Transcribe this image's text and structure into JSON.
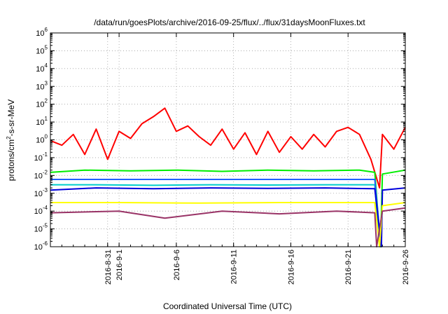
{
  "chart_data": {
    "type": "line",
    "title": "/data/run/goesPlots/archive/2016-09-25/flux/../flux/31daysMoonFluxes.txt",
    "xlabel": "Coordinated Universal Time (UTC)",
    "ylabel": {
      "pre": "protons/cm",
      "sup": "2",
      "post": "-s-sr-MeV"
    },
    "x_range": [
      "2016-08-26",
      "2016-09-26"
    ],
    "y_scale": "log",
    "ylim": [
      1e-06,
      1000000.0
    ],
    "grid": true,
    "y_ticks": [
      {
        "value": 1e-06,
        "base": "10",
        "exp": "-6"
      },
      {
        "value": 1e-05,
        "base": "10",
        "exp": "-5"
      },
      {
        "value": 0.0001,
        "base": "10",
        "exp": "-4"
      },
      {
        "value": 0.001,
        "base": "10",
        "exp": "-3"
      },
      {
        "value": 0.01,
        "base": "10",
        "exp": "-2"
      },
      {
        "value": 0.1,
        "base": "10",
        "exp": "-1"
      },
      {
        "value": 1,
        "base": "10",
        "exp": "0"
      },
      {
        "value": 10.0,
        "base": "10",
        "exp": "1"
      },
      {
        "value": 100.0,
        "base": "10",
        "exp": "2"
      },
      {
        "value": 1000.0,
        "base": "10",
        "exp": "3"
      },
      {
        "value": 10000.0,
        "base": "10",
        "exp": "4"
      },
      {
        "value": 100000.0,
        "base": "10",
        "exp": "5"
      },
      {
        "value": 1000000.0,
        "base": "10",
        "exp": "6"
      }
    ],
    "x_ticks": [
      {
        "value": "2016-08-31",
        "lines": [
          "2016-8-31"
        ]
      },
      {
        "value": "2016-09-01",
        "lines": [
          "2016-9-1"
        ]
      },
      {
        "value": "2016-09-06",
        "lines": [
          "2016-9-6"
        ]
      },
      {
        "value": "2016-09-11",
        "lines": [
          "2016-9-11"
        ]
      },
      {
        "value": "2016-09-16",
        "lines": [
          "2016-9-16"
        ]
      },
      {
        "value": "2016-09-21",
        "lines": [
          "2016-9-21"
        ]
      },
      {
        "value": "2016-09-26",
        "lines": [
          "2016-9-26"
        ]
      }
    ],
    "series": [
      {
        "color": "#ff0000",
        "points": [
          [
            "2016-08-26",
            0.9
          ],
          [
            "2016-08-27",
            0.5
          ],
          [
            "2016-08-28",
            2
          ],
          [
            "2016-08-29",
            0.15
          ],
          [
            "2016-08-30",
            4
          ],
          [
            "2016-08-31",
            0.08
          ],
          [
            "2016-09-01",
            3
          ],
          [
            "2016-09-02",
            1.2
          ],
          [
            "2016-09-03",
            8
          ],
          [
            "2016-09-04",
            20
          ],
          [
            "2016-09-05",
            60
          ],
          [
            "2016-09-06",
            3
          ],
          [
            "2016-09-07",
            6
          ],
          [
            "2016-09-08",
            1.5
          ],
          [
            "2016-09-09",
            0.5
          ],
          [
            "2016-09-10",
            4
          ],
          [
            "2016-09-11",
            0.3
          ],
          [
            "2016-09-12",
            2.5
          ],
          [
            "2016-09-13",
            0.15
          ],
          [
            "2016-09-14",
            3
          ],
          [
            "2016-09-15",
            0.2
          ],
          [
            "2016-09-16",
            1.5
          ],
          [
            "2016-09-17",
            0.3
          ],
          [
            "2016-09-18",
            2
          ],
          [
            "2016-09-19",
            0.4
          ],
          [
            "2016-09-20",
            3
          ],
          [
            "2016-09-21",
            5
          ],
          [
            "2016-09-22",
            2
          ],
          [
            "2016-09-23",
            0.08
          ],
          [
            "2016-09-23T18:00",
            0.002
          ],
          [
            "2016-09-24",
            2
          ],
          [
            "2016-09-25",
            0.3
          ],
          [
            "2016-09-26",
            5
          ]
        ]
      },
      {
        "color": "#00ee00",
        "points": [
          [
            "2016-08-26",
            0.015
          ],
          [
            "2016-08-29",
            0.02
          ],
          [
            "2016-09-02",
            0.018
          ],
          [
            "2016-09-06",
            0.02
          ],
          [
            "2016-09-10",
            0.017
          ],
          [
            "2016-09-14",
            0.02
          ],
          [
            "2016-09-18",
            0.018
          ],
          [
            "2016-09-22",
            0.02
          ],
          [
            "2016-09-23T08:00",
            0.015
          ],
          [
            "2016-09-23T20:00",
            1e-06
          ],
          [
            "2016-09-24",
            0.012
          ],
          [
            "2016-09-26",
            0.02
          ]
        ]
      },
      {
        "color": "#00cccc",
        "points": [
          [
            "2016-08-26",
            0.003
          ],
          [
            "2016-08-30",
            0.003
          ],
          [
            "2016-09-04",
            0.0028
          ],
          [
            "2016-09-09",
            0.003
          ],
          [
            "2016-09-14",
            0.0029
          ],
          [
            "2016-09-19",
            0.003
          ],
          [
            "2016-09-23T08:00",
            0.003
          ],
          [
            "2016-09-23T18:00",
            1e-06
          ]
        ]
      },
      {
        "color": "#2060ff",
        "points": [
          [
            "2016-08-26",
            0.006
          ],
          [
            "2016-09-05",
            0.006
          ],
          [
            "2016-09-15",
            0.006
          ],
          [
            "2016-09-23T08:00",
            0.006
          ],
          [
            "2016-09-23T21:00",
            1e-06
          ]
        ]
      },
      {
        "color": "#0000dd",
        "points": [
          [
            "2016-08-26",
            0.0015
          ],
          [
            "2016-08-30",
            0.002
          ],
          [
            "2016-09-04",
            0.0018
          ],
          [
            "2016-09-09",
            0.002
          ],
          [
            "2016-09-14",
            0.0019
          ],
          [
            "2016-09-19",
            0.002
          ],
          [
            "2016-09-23T08:00",
            0.0018
          ],
          [
            "2016-09-23T22:00",
            1e-06
          ],
          [
            "2016-09-24",
            0.0015
          ],
          [
            "2016-09-26",
            0.002
          ]
        ]
      },
      {
        "color": "#ffff00",
        "points": [
          [
            "2016-08-26",
            0.0003
          ],
          [
            "2016-09-01",
            0.0003
          ],
          [
            "2016-09-08",
            0.00028
          ],
          [
            "2016-09-15",
            0.0003
          ],
          [
            "2016-09-23T08:00",
            0.0003
          ],
          [
            "2016-09-23T18:00",
            1e-06
          ],
          [
            "2016-09-24",
            0.0002
          ],
          [
            "2016-09-26",
            0.0003
          ]
        ]
      },
      {
        "color": "#993366",
        "points": [
          [
            "2016-08-26",
            8e-05
          ],
          [
            "2016-09-01",
            0.0001
          ],
          [
            "2016-09-05",
            4e-05
          ],
          [
            "2016-09-10",
            0.0001
          ],
          [
            "2016-09-15",
            7e-05
          ],
          [
            "2016-09-20",
            0.0001
          ],
          [
            "2016-09-23T08:00",
            8e-05
          ],
          [
            "2016-09-23T12:00",
            1e-06
          ],
          [
            "2016-09-24",
            0.0001
          ],
          [
            "2016-09-26",
            0.00015
          ]
        ]
      }
    ]
  }
}
